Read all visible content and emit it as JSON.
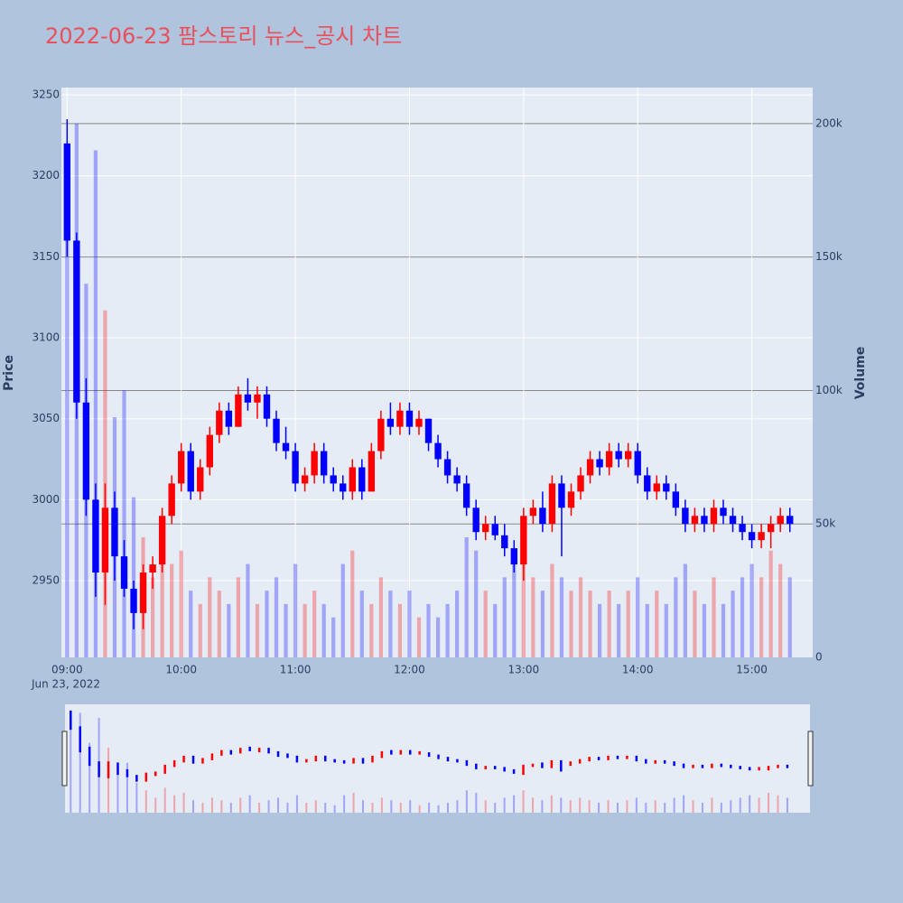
{
  "chart_data": {
    "type": "candlestick",
    "title": "2022-06-23 팜스토리 뉴스_공시 차트",
    "ylabel": "Price",
    "y2label": "Volume",
    "x": [
      "2022-06-23 09:00",
      "2022-06-23 09:05",
      "2022-06-23 09:10",
      "2022-06-23 09:15",
      "2022-06-23 09:20",
      "2022-06-23 09:25",
      "2022-06-23 09:30",
      "2022-06-23 09:35",
      "2022-06-23 09:40",
      "2022-06-23 09:45",
      "2022-06-23 09:50",
      "2022-06-23 09:55",
      "2022-06-23 10:00",
      "2022-06-23 10:05",
      "2022-06-23 10:10",
      "2022-06-23 10:15",
      "2022-06-23 10:20",
      "2022-06-23 10:25",
      "2022-06-23 10:30",
      "2022-06-23 10:35",
      "2022-06-23 10:40",
      "2022-06-23 10:45",
      "2022-06-23 10:50",
      "2022-06-23 10:55",
      "2022-06-23 11:00",
      "2022-06-23 11:05",
      "2022-06-23 11:10",
      "2022-06-23 11:15",
      "2022-06-23 11:20",
      "2022-06-23 11:25",
      "2022-06-23 11:30",
      "2022-06-23 11:35",
      "2022-06-23 11:40",
      "2022-06-23 11:45",
      "2022-06-23 11:50",
      "2022-06-23 11:55",
      "2022-06-23 12:00",
      "2022-06-23 12:05",
      "2022-06-23 12:10",
      "2022-06-23 12:15",
      "2022-06-23 12:20",
      "2022-06-23 12:25",
      "2022-06-23 12:30",
      "2022-06-23 12:35",
      "2022-06-23 12:40",
      "2022-06-23 12:45",
      "2022-06-23 12:50",
      "2022-06-23 12:55",
      "2022-06-23 13:00",
      "2022-06-23 13:05",
      "2022-06-23 13:10",
      "2022-06-23 13:15",
      "2022-06-23 13:20",
      "2022-06-23 13:25",
      "2022-06-23 13:30",
      "2022-06-23 13:35",
      "2022-06-23 13:40",
      "2022-06-23 13:45",
      "2022-06-23 13:50",
      "2022-06-23 13:55",
      "2022-06-23 14:00",
      "2022-06-23 14:05",
      "2022-06-23 14:10",
      "2022-06-23 14:15",
      "2022-06-23 14:20",
      "2022-06-23 14:25",
      "2022-06-23 14:30",
      "2022-06-23 14:35",
      "2022-06-23 14:40",
      "2022-06-23 14:45",
      "2022-06-23 14:50",
      "2022-06-23 14:55",
      "2022-06-23 15:00",
      "2022-06-23 15:05",
      "2022-06-23 15:10",
      "2022-06-23 15:15",
      "2022-06-23 15:20"
    ],
    "open": [
      3220,
      3160,
      3060,
      3000,
      2955,
      2995,
      2965,
      2945,
      2930,
      2955,
      2960,
      2990,
      3010,
      3030,
      3005,
      3020,
      3040,
      3055,
      3045,
      3065,
      3060,
      3065,
      3050,
      3035,
      3030,
      3010,
      3015,
      3030,
      3015,
      3010,
      3005,
      3020,
      3005,
      3030,
      3050,
      3045,
      3055,
      3045,
      3050,
      3035,
      3025,
      3015,
      3010,
      2995,
      2980,
      2985,
      2978,
      2970,
      2960,
      2990,
      2995,
      2985,
      3010,
      2995,
      3005,
      3015,
      3025,
      3020,
      3030,
      3025,
      3030,
      3015,
      3005,
      3010,
      3005,
      2995,
      2985,
      2990,
      2985,
      2995,
      2990,
      2985,
      2980,
      2975,
      2980,
      2985,
      2990
    ],
    "high": [
      3235,
      3165,
      3075,
      3010,
      3010,
      3005,
      2975,
      2950,
      2960,
      2965,
      2995,
      3015,
      3035,
      3035,
      3025,
      3045,
      3060,
      3060,
      3070,
      3075,
      3070,
      3070,
      3055,
      3045,
      3035,
      3020,
      3035,
      3035,
      3020,
      3015,
      3025,
      3025,
      3035,
      3055,
      3060,
      3060,
      3060,
      3055,
      3050,
      3040,
      3030,
      3020,
      3015,
      3000,
      2990,
      2990,
      2985,
      2975,
      2995,
      3000,
      3005,
      3015,
      3015,
      3010,
      3020,
      3030,
      3030,
      3035,
      3035,
      3035,
      3035,
      3020,
      3015,
      3015,
      3010,
      3000,
      2995,
      2995,
      3000,
      3000,
      2995,
      2990,
      2985,
      2985,
      2990,
      2995,
      2995
    ],
    "low": [
      3150,
      3050,
      2990,
      2940,
      2935,
      2950,
      2940,
      2920,
      2920,
      2945,
      2955,
      2985,
      3005,
      3000,
      3000,
      3015,
      3035,
      3040,
      3045,
      3055,
      3050,
      3045,
      3030,
      3025,
      3005,
      3005,
      3010,
      3010,
      3005,
      3000,
      3000,
      3000,
      3005,
      3025,
      3040,
      3040,
      3040,
      3040,
      3030,
      3020,
      3010,
      3005,
      2990,
      2975,
      2975,
      2975,
      2965,
      2955,
      2950,
      2985,
      2980,
      2980,
      2965,
      2990,
      3000,
      3010,
      3015,
      3015,
      3020,
      3020,
      3010,
      3000,
      3000,
      3000,
      2990,
      2980,
      2980,
      2980,
      2980,
      2985,
      2980,
      2975,
      2970,
      2970,
      2970,
      2980,
      2980
    ],
    "close": [
      3160,
      3060,
      3000,
      2955,
      2995,
      2965,
      2945,
      2930,
      2955,
      2960,
      2990,
      3010,
      3030,
      3005,
      3020,
      3040,
      3055,
      3045,
      3065,
      3060,
      3065,
      3050,
      3035,
      3030,
      3010,
      3015,
      3030,
      3015,
      3010,
      3005,
      3020,
      3005,
      3030,
      3050,
      3045,
      3055,
      3045,
      3050,
      3035,
      3025,
      3015,
      3010,
      2995,
      2980,
      2985,
      2978,
      2970,
      2960,
      2990,
      2995,
      2985,
      3010,
      2995,
      3005,
      3015,
      3025,
      3020,
      3030,
      3025,
      3030,
      3015,
      3005,
      3010,
      3005,
      2995,
      2985,
      2990,
      2985,
      2995,
      2990,
      2985,
      2980,
      2975,
      2980,
      2985,
      2990,
      2985
    ],
    "volume": [
      180000,
      200000,
      140000,
      190000,
      130000,
      90000,
      100000,
      60000,
      45000,
      30000,
      50000,
      35000,
      40000,
      25000,
      20000,
      30000,
      25000,
      20000,
      30000,
      35000,
      20000,
      25000,
      30000,
      20000,
      35000,
      20000,
      25000,
      20000,
      15000,
      35000,
      40000,
      25000,
      20000,
      30000,
      25000,
      20000,
      25000,
      15000,
      20000,
      15000,
      20000,
      25000,
      45000,
      40000,
      25000,
      20000,
      30000,
      35000,
      45000,
      30000,
      25000,
      35000,
      30000,
      25000,
      30000,
      25000,
      20000,
      25000,
      20000,
      25000,
      30000,
      20000,
      25000,
      20000,
      30000,
      35000,
      25000,
      20000,
      30000,
      20000,
      25000,
      30000,
      35000,
      30000,
      40000,
      35000,
      30000
    ],
    "increasing_color": "#ff0000",
    "decreasing_color": "#0000ff",
    "xlim": [
      "2022-06-23 08:57",
      "2022-06-23 15:32"
    ],
    "xticks": [
      {
        "value": "2022-06-23 09:00",
        "label": "09:00"
      },
      {
        "value": "2022-06-23 10:00",
        "label": "10:00"
      },
      {
        "value": "2022-06-23 11:00",
        "label": "11:00"
      },
      {
        "value": "2022-06-23 12:00",
        "label": "12:00"
      },
      {
        "value": "2022-06-23 13:00",
        "label": "13:00"
      },
      {
        "value": "2022-06-23 14:00",
        "label": "14:00"
      },
      {
        "value": "2022-06-23 15:00",
        "label": "15:00"
      }
    ],
    "x_date_label": "Jun 23, 2022",
    "ylim": [
      2902.6,
      3254.5
    ],
    "yticks": [
      2950,
      3000,
      3050,
      3100,
      3150,
      3200,
      3250
    ],
    "y2lim": [
      0,
      213500
    ],
    "y2ticks": [
      0,
      {
        "value": 50000,
        "label": "50k"
      },
      {
        "value": 100000,
        "label": "100k"
      },
      {
        "value": 150000,
        "label": "150k"
      },
      {
        "value": 200000,
        "label": "200k"
      }
    ],
    "grid": true,
    "rangeslider": true
  }
}
